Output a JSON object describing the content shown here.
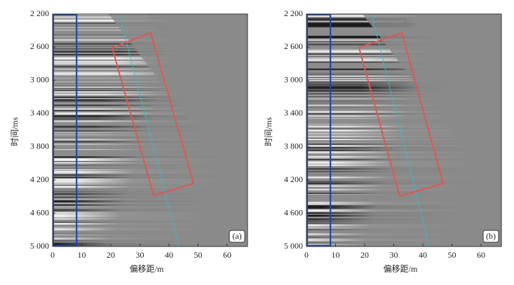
{
  "chart_data": [
    {
      "type": "image",
      "panel_label": "(a)",
      "x_label": "偏移距/m",
      "y_label": "时间/ms",
      "xlim": [
        0,
        67
      ],
      "xticks": [
        0,
        10,
        20,
        30,
        40,
        50,
        60
      ],
      "ylim": [
        5000,
        2200
      ],
      "yticks": [
        {
          "value": 2200,
          "label": "2 200"
        },
        {
          "value": 2600,
          "label": "2 600"
        },
        {
          "value": 3000,
          "label": "3 000"
        },
        {
          "value": 3400,
          "label": "3 400"
        },
        {
          "value": 3800,
          "label": "3 800"
        },
        {
          "value": 4200,
          "label": "4 200"
        },
        {
          "value": 4600,
          "label": "4 600"
        },
        {
          "value": 5000,
          "label": "5 000"
        }
      ]
    },
    {
      "type": "image",
      "panel_label": "(b)",
      "x_label": "偏移距/m",
      "y_label": "时间/ms",
      "xlim": [
        0,
        67
      ],
      "xticks": [
        0,
        10,
        20,
        30,
        40,
        50,
        60
      ],
      "ylim": [
        5000,
        2200
      ],
      "yticks": [
        {
          "value": 2200,
          "label": "2 200"
        },
        {
          "value": 2600,
          "label": "2 600"
        },
        {
          "value": 3000,
          "label": "3 000"
        },
        {
          "value": 3400,
          "label": "3 400"
        },
        {
          "value": 3800,
          "label": "3 800"
        },
        {
          "value": 4200,
          "label": "4 200"
        },
        {
          "value": 4600,
          "label": "4 600"
        },
        {
          "value": 5000,
          "label": "5 000"
        }
      ]
    }
  ]
}
